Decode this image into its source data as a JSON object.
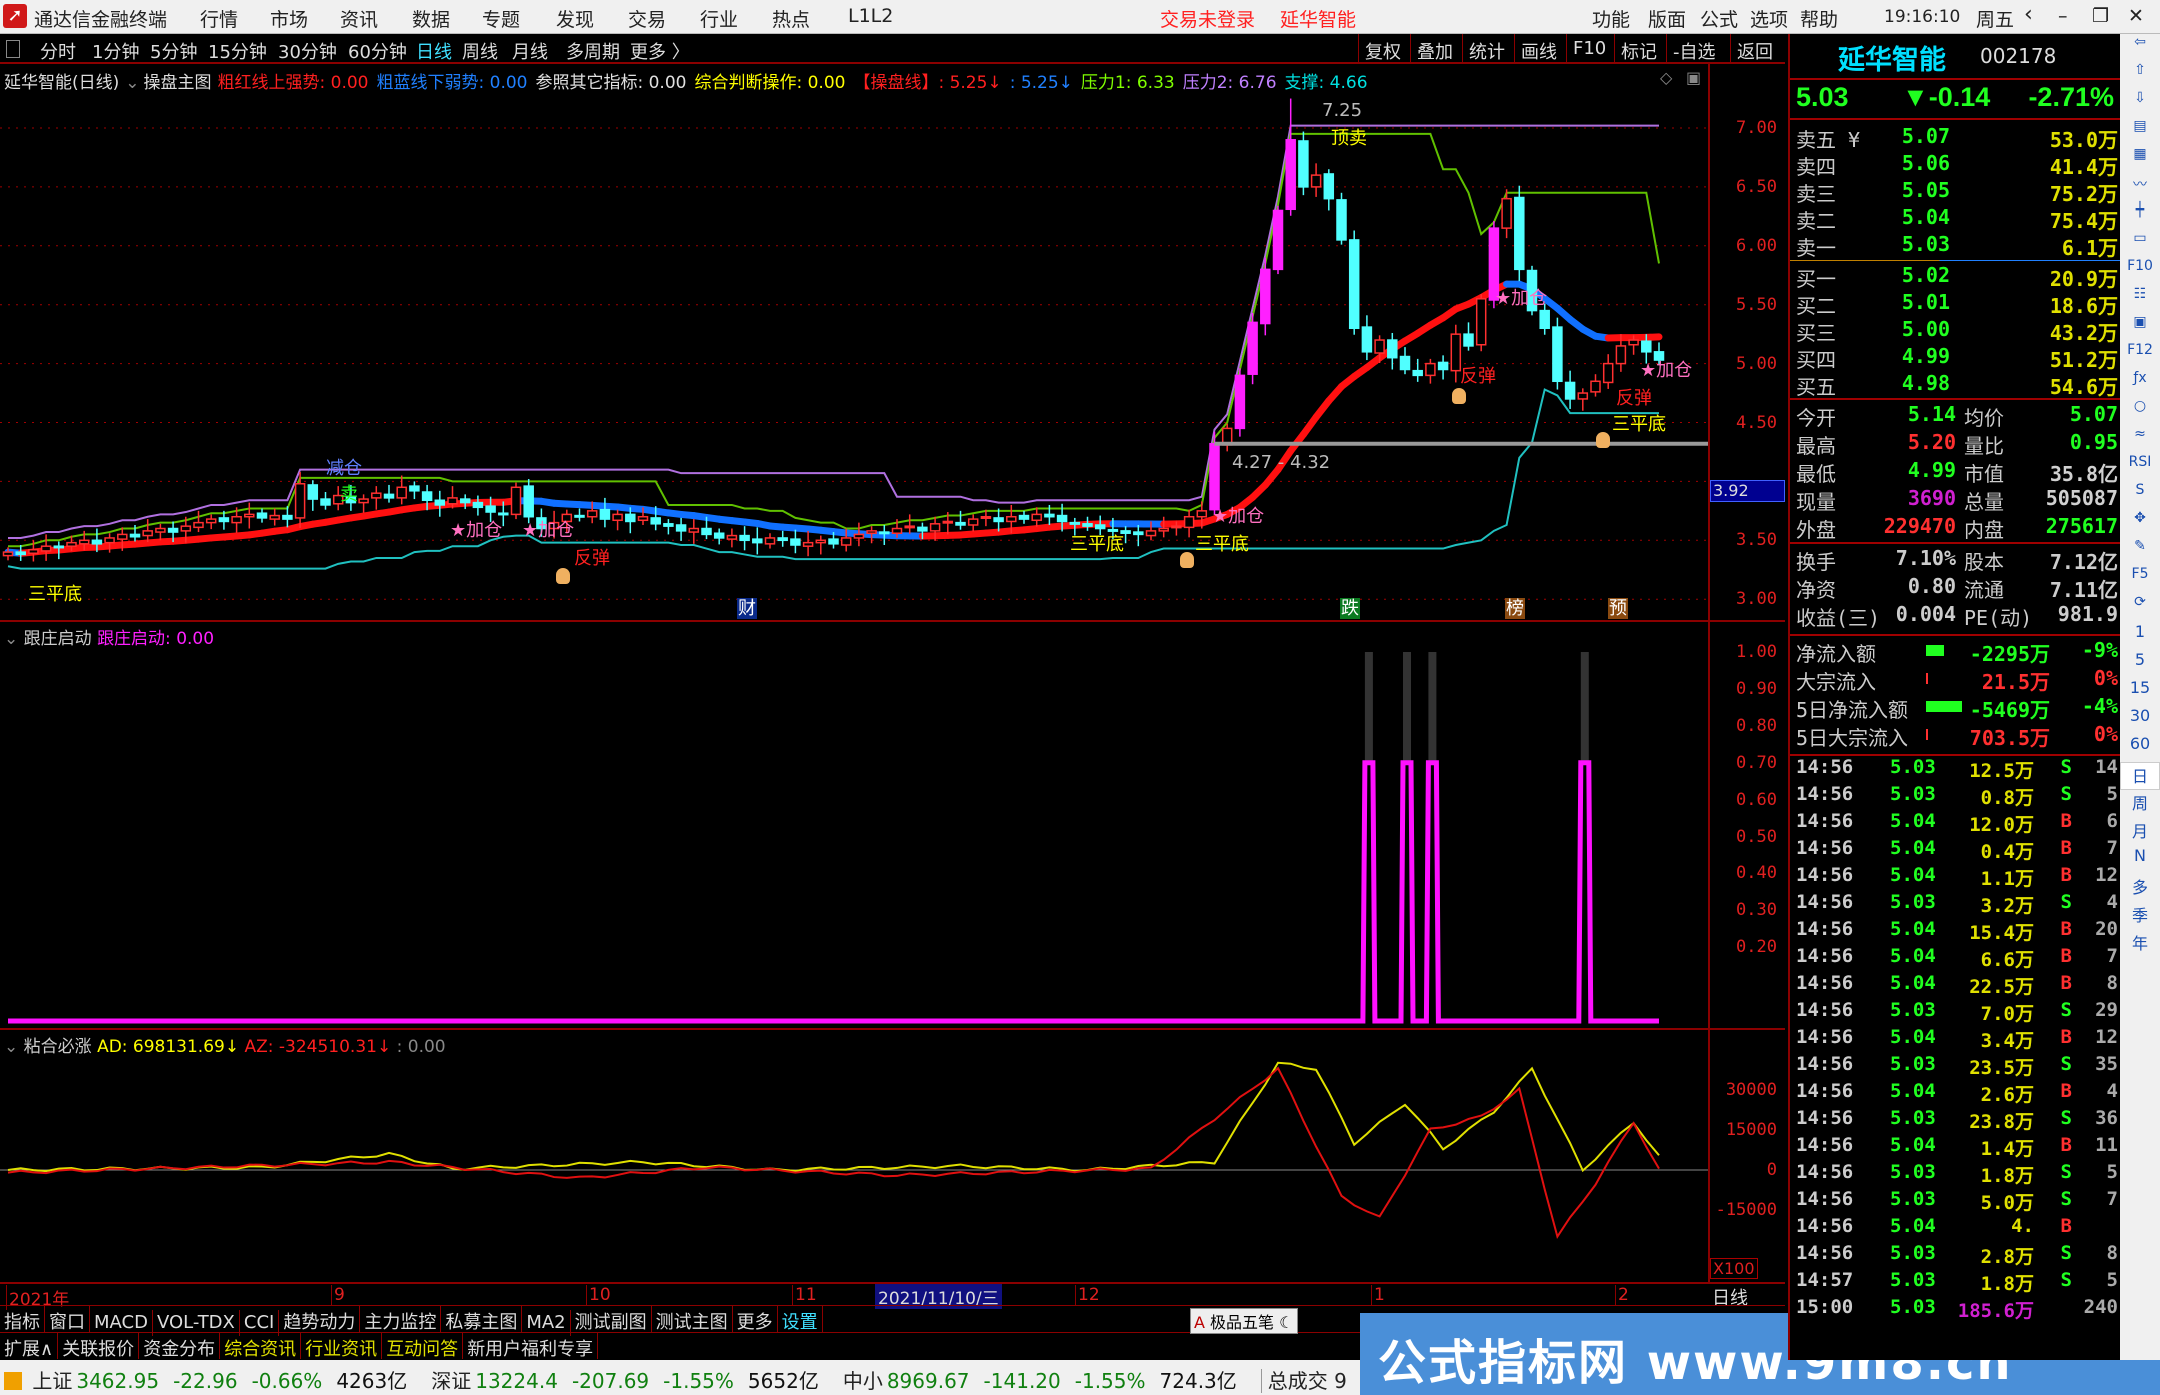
{
  "app": {
    "title": "通达信金融终端",
    "menu": [
      "行情",
      "市场",
      "资讯",
      "数据",
      "专题",
      "发现",
      "交易",
      "行业",
      "热点",
      "L1L2"
    ],
    "login_status": "交易未登录",
    "stock_name_top": "延华智能",
    "right_menu": [
      "功能",
      "版面",
      "公式",
      "选项",
      "帮助"
    ],
    "clock": "19:16:10",
    "weekday": "周五"
  },
  "periods": [
    "分时",
    "1分钟",
    "5分钟",
    "15分钟",
    "30分钟",
    "60分钟",
    "日线",
    "周线",
    "月线",
    "多周期",
    "更多 〉"
  ],
  "active_period": "日线",
  "chart_tools": [
    "复权",
    "叠加",
    "统计",
    "画线",
    "F10",
    "标记",
    "-自选",
    "返回"
  ],
  "main_indicator": {
    "stock": "延华智能(日线)",
    "name": "操盘主图",
    "items": [
      {
        "t": "粗红线上强势: 0.00",
        "c": "#ff2020"
      },
      {
        "t": "粗蓝线下弱势: 0.00",
        "c": "#2080ff"
      },
      {
        "t": "参照其它指标: 0.00",
        "c": "#e0e0e0"
      },
      {
        "t": "综合判断操作: 0.00",
        "c": "#ffff00"
      },
      {
        "t": "【操盘线】: 5.25↓",
        "c": "#ff2020"
      },
      {
        "t": ": 5.25↓",
        "c": "#2080ff"
      },
      {
        "t": "压力1: 6.33",
        "c": "#80ff00"
      },
      {
        "t": "压力2: 6.76",
        "c": "#c080ff"
      },
      {
        "t": "支撑: 4.66",
        "c": "#00e0e0"
      }
    ]
  },
  "annotations": {
    "high": "7.25",
    "top_sell": "顶卖",
    "add": "★加仓",
    "rebound": "反弹",
    "triple_bottom": "三平底",
    "reduce": "减仓",
    "sell": "卖",
    "range": "4.27 - 4.32",
    "current_line": "3.92",
    "events": [
      "财",
      "跌",
      "榜",
      "预"
    ]
  },
  "sub1": {
    "name": "跟庄启动",
    "value": "跟庄启动: 0.00",
    "axis": [
      "1.00",
      "0.90",
      "0.80",
      "0.70",
      "0.60",
      "0.50",
      "0.40",
      "0.30",
      "0.20"
    ]
  },
  "sub2": {
    "name": "粘合必涨",
    "ad": "AD: 698131.69↓",
    "az": "AZ: -324510.31↓",
    "extra": ": 0.00",
    "axis": [
      "30000",
      "15000",
      "0",
      "-15000"
    ],
    "scale": "X100"
  },
  "date_axis": {
    "labels": [
      "2021年",
      "9",
      "10",
      "11",
      "12",
      "1",
      "2"
    ],
    "cursor": "2021/11/10/三",
    "period": "日线"
  },
  "tabs1": [
    "指标",
    "窗口",
    "MACD",
    "VOL-TDX",
    "CCI",
    "趋势动力",
    "主力监控",
    "私募主图",
    "MA2",
    "测试副图",
    "测试主图",
    "更多",
    "设置"
  ],
  "tabs2": [
    "扩展∧",
    "关联报价",
    "资金分布",
    "综合资讯",
    "行业资讯",
    "互动问答",
    "新用户福利专享"
  ],
  "status": {
    "sh": {
      "n": "上证",
      "v": "3462.95",
      "c": "-22.96",
      "p": "-0.66%",
      "a": "4263亿"
    },
    "sz": {
      "n": "深证",
      "v": "13224.4",
      "c": "-207.69",
      "p": "-1.55%",
      "a": "5652亿"
    },
    "zx": {
      "n": "中小",
      "v": "8969.67",
      "c": "-141.20",
      "p": "-1.55%",
      "a": "724.3亿"
    },
    "total": "总成交 9"
  },
  "watermark": "公式指标网 www.9m8.cn",
  "quote": {
    "name": "延华智能",
    "code": "002178",
    "price": "5.03",
    "change": "▼-0.14",
    "pct": "-2.71%",
    "sells": [
      [
        "卖五 ¥",
        "5.07",
        "53.0万"
      ],
      [
        "卖四",
        "5.06",
        "41.4万"
      ],
      [
        "卖三",
        "5.05",
        "75.2万"
      ],
      [
        "卖二",
        "5.04",
        "75.4万"
      ],
      [
        "卖一",
        "5.03",
        "6.1万"
      ]
    ],
    "buys": [
      [
        "买一",
        "5.02",
        "20.9万"
      ],
      [
        "买二",
        "5.01",
        "18.6万"
      ],
      [
        "买三",
        "5.00",
        "43.2万"
      ],
      [
        "买四",
        "4.99",
        "51.2万"
      ],
      [
        "买五",
        "4.98",
        "54.6万"
      ]
    ],
    "stats": [
      [
        "今开",
        "5.14",
        "#20ff20",
        "均价",
        "5.07",
        "#20ff20"
      ],
      [
        "最高",
        "5.20",
        "#ff3030",
        "量比",
        "0.95",
        "#20ff20"
      ],
      [
        "最低",
        "4.99",
        "#20ff20",
        "市值",
        "35.8亿",
        "#d0d0d0"
      ],
      [
        "现量",
        "3690",
        "#d020d0",
        "总量",
        "505087",
        "#d0d0d0"
      ],
      [
        "外盘",
        "229470",
        "#ff3030",
        "内盘",
        "275617",
        "#20ff20"
      ]
    ],
    "stats2": [
      [
        "换手",
        "7.10%",
        "股本",
        "7.12亿"
      ],
      [
        "净资",
        "0.80",
        "流通",
        "7.11亿"
      ],
      [
        "收益(三)",
        "0.004",
        "PE(动)",
        "981.9"
      ]
    ],
    "flows": [
      [
        "净流入额",
        "-2295万",
        "-9%",
        "#20ff20",
        0.3
      ],
      [
        "大宗流入",
        "21.5万",
        "0%",
        "#ff3030",
        0.02
      ],
      [
        "5日净流入额",
        "-5469万",
        "-4%",
        "#20ff20",
        0.6
      ],
      [
        "5日大宗流入",
        "703.5万",
        "0%",
        "#ff3030",
        0.04
      ]
    ],
    "ticks": [
      [
        "14:56",
        "5.03",
        "12.5万",
        "S",
        "14"
      ],
      [
        "14:56",
        "5.03",
        "0.8万",
        "S",
        "5"
      ],
      [
        "14:56",
        "5.04",
        "12.0万",
        "B",
        "6"
      ],
      [
        "14:56",
        "5.04",
        "0.4万",
        "B",
        "7"
      ],
      [
        "14:56",
        "5.04",
        "1.1万",
        "B",
        "12"
      ],
      [
        "14:56",
        "5.03",
        "3.2万",
        "S",
        "4"
      ],
      [
        "14:56",
        "5.04",
        "15.4万",
        "B",
        "20"
      ],
      [
        "14:56",
        "5.04",
        "6.6万",
        "B",
        "7"
      ],
      [
        "14:56",
        "5.04",
        "22.5万",
        "B",
        "8"
      ],
      [
        "14:56",
        "5.03",
        "7.0万",
        "S",
        "29"
      ],
      [
        "14:56",
        "5.04",
        "3.4万",
        "B",
        "12"
      ],
      [
        "14:56",
        "5.03",
        "23.5万",
        "S",
        "35"
      ],
      [
        "14:56",
        "5.04",
        "2.6万",
        "B",
        "4"
      ],
      [
        "14:56",
        "5.03",
        "23.8万",
        "S",
        "36"
      ],
      [
        "14:56",
        "5.04",
        "1.4万",
        "B",
        "11"
      ],
      [
        "14:56",
        "5.03",
        "1.8万",
        "S",
        "5"
      ],
      [
        "14:56",
        "5.03",
        "5.0万",
        "S",
        "7"
      ],
      [
        "14:56",
        "5.04",
        "4.",
        "B",
        ""
      ],
      [
        "14:56",
        "5.03",
        "2.8万",
        "S",
        "8"
      ],
      [
        "14:57",
        "5.03",
        "1.8万",
        "S",
        "5"
      ],
      [
        "15:00",
        "5.03",
        "185.6万",
        "",
        "240"
      ]
    ]
  },
  "ime": "极品五笔",
  "side_periods": [
    "1",
    "5",
    "15",
    "30",
    "60",
    "日",
    "周",
    "月",
    "N",
    "多",
    "季",
    "年"
  ],
  "chart_data": {
    "type": "candlestick",
    "ylim": [
      3.0,
      7.0
    ],
    "price_ticks": [
      "7.00",
      "6.50",
      "6.00",
      "5.50",
      "5.00",
      "4.50",
      "3.50",
      "3.00"
    ],
    "closes": [
      3.4,
      3.38,
      3.42,
      3.45,
      3.44,
      3.48,
      3.5,
      3.47,
      3.52,
      3.55,
      3.53,
      3.58,
      3.6,
      3.57,
      3.62,
      3.65,
      3.68,
      3.66,
      3.7,
      3.72,
      3.69,
      3.71,
      3.68,
      3.98,
      3.85,
      3.8,
      3.88,
      3.82,
      3.85,
      3.9,
      3.86,
      3.95,
      3.92,
      3.84,
      3.8,
      3.86,
      3.82,
      3.78,
      3.74,
      3.72,
      3.95,
      3.7,
      3.6,
      3.65,
      3.72,
      3.7,
      3.75,
      3.68,
      3.72,
      3.66,
      3.7,
      3.64,
      3.62,
      3.58,
      3.6,
      3.55,
      3.52,
      3.54,
      3.5,
      3.48,
      3.52,
      3.5,
      3.46,
      3.48,
      3.5,
      3.47,
      3.52,
      3.55,
      3.58,
      3.56,
      3.6,
      3.62,
      3.58,
      3.64,
      3.66,
      3.63,
      3.68,
      3.7,
      3.66,
      3.7,
      3.68,
      3.72,
      3.7,
      3.66,
      3.64,
      3.62,
      3.6,
      3.58,
      3.56,
      3.55,
      3.58,
      3.6,
      3.62,
      3.7,
      3.75,
      4.32,
      4.45,
      4.9,
      5.35,
      5.8,
      6.3,
      6.9,
      6.5,
      6.6,
      6.4,
      6.05,
      5.3,
      5.1,
      5.2,
      5.05,
      4.95,
      4.9,
      5.0,
      4.95,
      5.25,
      5.15,
      5.55,
      6.15,
      6.4,
      5.8,
      5.45,
      5.3,
      4.85,
      4.7,
      4.75,
      4.85,
      5.0,
      5.15,
      5.2,
      5.1,
      5.03
    ],
    "follow_signal": {
      "level": 0.7,
      "on_indices": [
        107,
        110,
        112,
        124
      ]
    },
    "ad_points": [
      [
        0,
        0
      ],
      [
        20,
        1000
      ],
      [
        30,
        6000
      ],
      [
        35,
        500
      ],
      [
        50,
        3000
      ],
      [
        60,
        0
      ],
      [
        75,
        1500
      ],
      [
        85,
        0
      ],
      [
        95,
        3000
      ],
      [
        100,
        40000
      ],
      [
        103,
        38000
      ],
      [
        106,
        10000
      ],
      [
        110,
        25000
      ],
      [
        113,
        8000
      ],
      [
        117,
        22000
      ],
      [
        120,
        38000
      ],
      [
        124,
        0
      ],
      [
        128,
        18000
      ],
      [
        130,
        5000
      ]
    ],
    "az_points": [
      [
        0,
        -1000
      ],
      [
        30,
        3000
      ],
      [
        45,
        -3000
      ],
      [
        55,
        1000
      ],
      [
        70,
        -2000
      ],
      [
        90,
        500
      ],
      [
        100,
        38000
      ],
      [
        105,
        -10000
      ],
      [
        108,
        -18000
      ],
      [
        112,
        15000
      ],
      [
        116,
        20000
      ],
      [
        119,
        30000
      ],
      [
        122,
        -25000
      ],
      [
        125,
        -5000
      ],
      [
        128,
        18000
      ],
      [
        130,
        0
      ]
    ]
  }
}
